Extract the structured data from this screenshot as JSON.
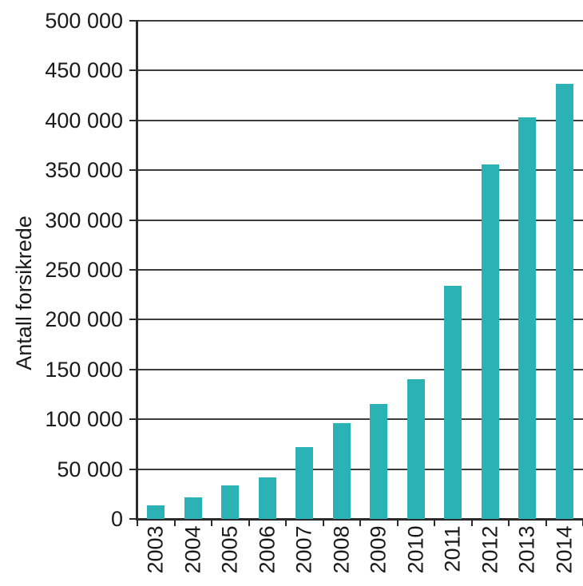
{
  "chart_data": {
    "type": "bar",
    "title": "",
    "xlabel": "",
    "ylabel": "Antall forsikrede",
    "categories": [
      "2003",
      "2004",
      "2005",
      "2006",
      "2007",
      "2008",
      "2009",
      "2010",
      "2011",
      "2012",
      "2013",
      "2014"
    ],
    "values": [
      13500,
      22000,
      34000,
      42000,
      72000,
      96000,
      115000,
      140000,
      234000,
      356000,
      403000,
      437000
    ],
    "ylim": [
      0,
      500000
    ],
    "ytick_step": 50000,
    "ytick_labels": [
      "0",
      "50 000",
      "100 000",
      "150 000",
      "200 000",
      "250 000",
      "300 000",
      "350 000",
      "400 000",
      "450 000",
      "500 000"
    ],
    "grid": true,
    "legend": false,
    "bar_color": "#2AB2B4",
    "grid_color": "#3d3d3d",
    "axis_color": "#2b2b2b"
  }
}
